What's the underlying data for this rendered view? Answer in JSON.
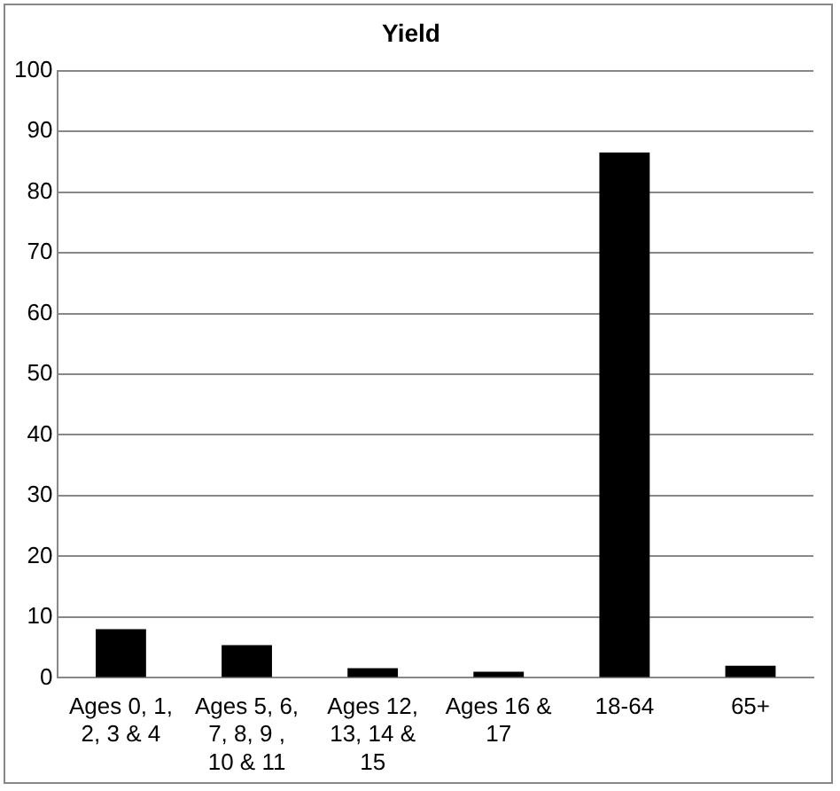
{
  "chart_data": {
    "type": "bar",
    "title": "Yield",
    "categories": [
      "Ages 0, 1, 2, 3 & 4",
      "Ages 5, 6, 7, 8, 9 , 10 & 11",
      "Ages 12, 13, 14 & 15",
      "Ages 16 & 17",
      "18-64",
      "65+"
    ],
    "values": [
      8.0,
      5.4,
      1.6,
      1.0,
      86.5,
      2.0
    ],
    "color": "#000000",
    "ylim": [
      0,
      100
    ],
    "yticks": [
      0,
      10,
      20,
      30,
      40,
      50,
      60,
      70,
      80,
      90,
      100
    ],
    "grid": "y",
    "legend": false
  }
}
